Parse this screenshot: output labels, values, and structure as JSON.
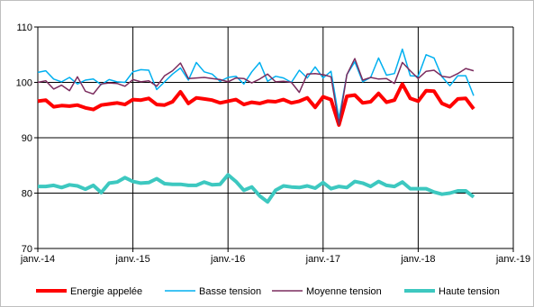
{
  "chart_data": {
    "type": "line",
    "title": "",
    "xlabel": "",
    "ylabel": "",
    "ylim": [
      70,
      110
    ],
    "yticks": [
      70,
      80,
      90,
      100,
      110
    ],
    "xticks": [
      "janv.-14",
      "janv.-15",
      "janv.-16",
      "janv.-17",
      "janv.-18",
      "janv.-19"
    ],
    "grid": "major, both axes",
    "legend_position": "bottom",
    "x_start": "janv.-14",
    "x_step": "month",
    "series": [
      {
        "name": "Energie appelée",
        "color": "#ff0000",
        "values": [
          96.6,
          96.8,
          95.6,
          95.8,
          95.7,
          95.9,
          95.4,
          95.1,
          95.9,
          96.1,
          96.3,
          96.0,
          96.9,
          96.8,
          97.1,
          96.0,
          95.9,
          96.5,
          98.3,
          96.2,
          97.2,
          97.0,
          96.8,
          96.3,
          96.6,
          96.9,
          96.0,
          96.4,
          96.2,
          96.6,
          96.5,
          96.9,
          96.3,
          96.6,
          97.2,
          95.5,
          97.4,
          96.9,
          92.3,
          97.5,
          97.7,
          96.3,
          96.5,
          98.0,
          96.4,
          96.8,
          99.7,
          97.1,
          96.6,
          98.5,
          98.4,
          96.2,
          95.6,
          97.0,
          97.1,
          95.2
        ]
      },
      {
        "name": "Basse tension",
        "color": "#00b0f0",
        "values": [
          101.8,
          102.1,
          100.6,
          100.1,
          100.9,
          99.7,
          100.4,
          100.6,
          99.6,
          100.5,
          100.1,
          100.0,
          101.9,
          102.3,
          102.2,
          98.7,
          100.1,
          101.5,
          102.6,
          100.4,
          103.6,
          101.9,
          101.5,
          100.2,
          100.9,
          101.1,
          99.7,
          101.9,
          103.6,
          100.2,
          101.1,
          100.8,
          100.0,
          102.2,
          100.8,
          102.8,
          100.8,
          102.0,
          93.5,
          101.4,
          103.7,
          100.1,
          100.9,
          104.4,
          101.3,
          101.6,
          106.0,
          101.2,
          101.1,
          105.0,
          104.4,
          101.0,
          99.4,
          101.2,
          101.2,
          97.6
        ]
      },
      {
        "name": "Moyenne tension",
        "color": "#7b2c5e",
        "values": [
          100.0,
          100.3,
          98.8,
          99.5,
          98.5,
          101.0,
          98.4,
          97.9,
          99.7,
          99.9,
          99.8,
          99.3,
          100.5,
          100.1,
          100.3,
          99.3,
          101.2,
          102.1,
          103.5,
          100.7,
          100.8,
          100.9,
          100.7,
          100.5,
          100.1,
          100.8,
          100.7,
          99.9,
          100.6,
          101.5,
          100.1,
          100.2,
          100.0,
          98.2,
          101.5,
          101.6,
          101.4,
          101.0,
          92.4,
          101.4,
          104.3,
          100.4,
          100.9,
          100.6,
          100.7,
          99.8,
          103.6,
          102.1,
          100.7,
          102.0,
          102.2,
          101.1,
          100.9,
          101.6,
          102.5,
          102.1
        ]
      },
      {
        "name": "Haute tension",
        "color": "#3dc8c0",
        "values": [
          81.2,
          81.2,
          81.4,
          81.0,
          81.5,
          81.3,
          80.7,
          81.4,
          80.1,
          81.8,
          82.0,
          82.8,
          82.1,
          81.8,
          81.9,
          82.6,
          81.7,
          81.6,
          81.6,
          81.4,
          81.4,
          82.0,
          81.5,
          81.6,
          83.3,
          82.1,
          80.5,
          81.1,
          79.5,
          78.4,
          80.5,
          81.3,
          81.1,
          81.0,
          81.3,
          80.9,
          81.9,
          80.8,
          81.2,
          81.0,
          82.1,
          81.8,
          81.2,
          82.1,
          81.4,
          81.2,
          82.0,
          80.8,
          80.8,
          80.8,
          80.2,
          79.8,
          80.0,
          80.4,
          80.4,
          79.3
        ]
      }
    ]
  }
}
